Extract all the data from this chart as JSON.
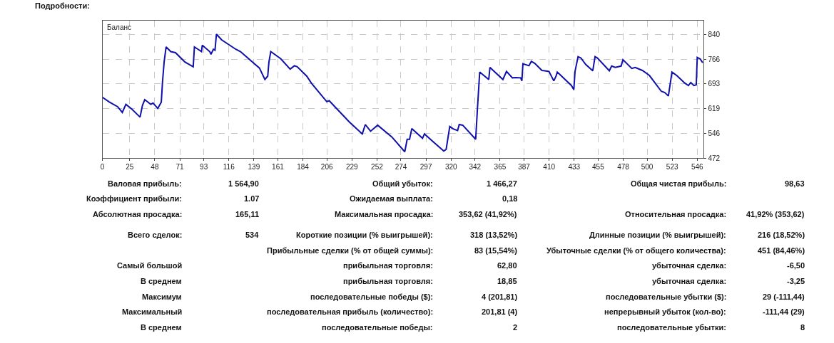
{
  "chart_data": [
    {
      "type": "line",
      "title": "Баланс",
      "color": "#1010aa",
      "grid": true,
      "marker": "none",
      "line_style": "solid",
      "x": [
        0,
        6.3,
        13.9,
        18.2,
        21.5,
        26.9,
        34.5,
        36.7,
        38.8,
        44.3,
        46.4,
        50.8,
        54,
        55.1,
        56.6,
        58.4,
        62.7,
        67,
        75.7,
        83.3,
        84.4,
        87.7,
        90.9,
        91.6,
        98.5,
        99.6,
        101.8,
        103.3,
        104.6,
        109.4,
        122.4,
        126.7,
        144.1,
        149.1,
        151.7,
        152.8,
        154.5,
        163.6,
        172.3,
        176.2,
        178.8,
        187.5,
        191.8,
        205.9,
        208.1,
        226.5,
        238.5,
        241.3,
        246.1,
        252.6,
        265.6,
        277.5,
        279.7,
        281.9,
        284,
        293.8,
        295.6,
        302.5,
        313.3,
        315.5,
        318.8,
        322,
        326,
        327.5,
        330.7,
        342.6,
        344.2,
        346.3,
        354.6,
        355.7,
        367.6,
        370.9,
        376.3,
        379.5,
        383.9,
        385,
        386,
        391.5,
        393.7,
        396.9,
        403.4,
        409.9,
        414.3,
        416.4,
        417.5,
        420.8,
        430.5,
        432.7,
        433.8,
        436.6,
        439.2,
        443.6,
        450.1,
        452.2,
        454.4,
        465.3,
        467.4,
        470.7,
        476.1,
        477.8,
        485.9,
        489.1,
        495.6,
        502.1,
        513,
        516.2,
        519.5,
        522.8,
        527.1,
        534.7,
        537.9,
        540.1,
        542.9,
        545.1,
        546,
        548.8,
        551
      ],
      "values": [
        653,
        639,
        625,
        608,
        632,
        618,
        594,
        629,
        646,
        632,
        636,
        620,
        639,
        698,
        758,
        803,
        789,
        786,
        758,
        744,
        803,
        796,
        789,
        808,
        789,
        781,
        796,
        793,
        841,
        824,
        796,
        789,
        740,
        706,
        716,
        758,
        789,
        768,
        737,
        747,
        744,
        716,
        695,
        640,
        643,
        580,
        544,
        572,
        552,
        570,
        535,
        491,
        528,
        528,
        560,
        531,
        544,
        524,
        493,
        498,
        566,
        559,
        554,
        572,
        570,
        528,
        618,
        728,
        706,
        742,
        706,
        730,
        711,
        712,
        711,
        702,
        753,
        747,
        760,
        754,
        733,
        730,
        702,
        716,
        728,
        718,
        688,
        676,
        730,
        774,
        770,
        751,
        732,
        774,
        770,
        732,
        746,
        742,
        746,
        765,
        739,
        742,
        733,
        718,
        671,
        667,
        657,
        728,
        718,
        695,
        688,
        697,
        688,
        690,
        772,
        767,
        756
      ],
      "xlim": [
        0,
        552
      ],
      "xticks": [
        0,
        25,
        48,
        71,
        93,
        116,
        139,
        161,
        184,
        206,
        229,
        252,
        274,
        297,
        320,
        342,
        365,
        387,
        410,
        433,
        455,
        478,
        500,
        523,
        546
      ],
      "ylim": [
        472,
        882
      ],
      "yticks": [
        472,
        546,
        619,
        693,
        766,
        840
      ]
    },
    {
      "type": "other",
      "title": "Подробности:",
      "cell_labels": [
        [
          "Валовая прибыль:",
          "1 564,90",
          "Общий убыток:",
          "1 466,27",
          "Общая чистая прибыль:",
          "98,63"
        ],
        [
          "Коэффициент прибыли:",
          "1.07",
          "Ожидаемая выплата:",
          "0,18",
          null,
          null
        ],
        [
          "Абсолютная просадка:",
          "165,11",
          "Максимальная просадка:",
          "353,62 (41,92%)",
          "Относительная просадка:",
          "41,92% (353,62)"
        ],
        [
          "Всего сделок:",
          "534",
          "Короткие позиции (% выигрышей):",
          "318 (13,52%)",
          "Длинные позиции (% выигрышей):",
          "216 (18,52%)"
        ],
        [
          null,
          null,
          "Прибыльные сделки (% от общей суммы):",
          "83 (15,54%)",
          "Убыточные сделки (% от общего количества):",
          "451 (84,46%)"
        ],
        [
          "Самый большой",
          null,
          "прибыльная торговля:",
          "62,80",
          "убыточная сделка:",
          "-6,50"
        ],
        [
          "В среднем",
          null,
          "прибыльная торговля:",
          "18,85",
          "убыточная сделка:",
          "-3,25"
        ],
        [
          "Максимум",
          null,
          "последовательные победы ($):",
          "4 (201,81)",
          "последовательные убытки ($):",
          "29 (-111,44)"
        ],
        [
          "Максимальный",
          null,
          "последовательная прибыль (количество):",
          "201,81 (4)",
          "непрерывный убыток (кол-во):",
          "-111,44 (29)"
        ],
        [
          "В среднем",
          null,
          "последовательные победы:",
          "2",
          "последовательные убытки:",
          "8"
        ]
      ]
    }
  ]
}
